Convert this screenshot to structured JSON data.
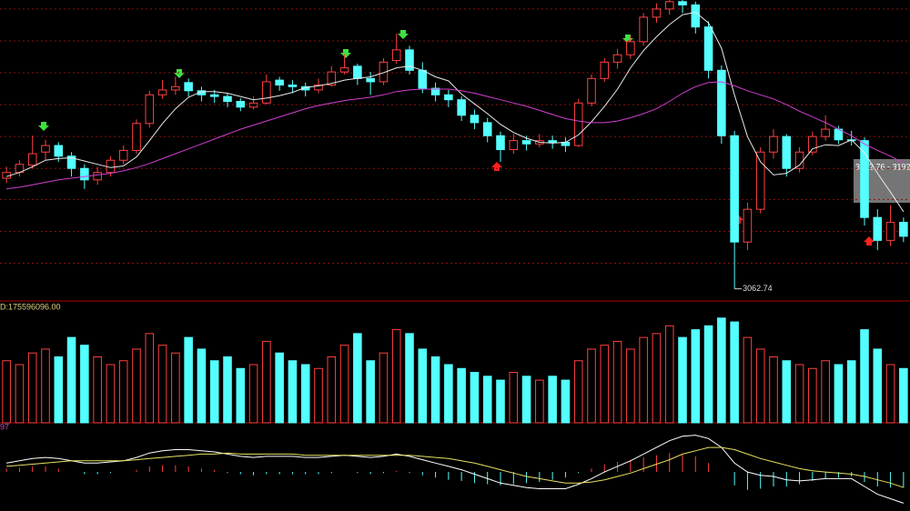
{
  "chart_data": {
    "type": "candlestick",
    "open": [
      3198,
      3205,
      3214,
      3230,
      3238,
      3225,
      3210,
      3196,
      3205,
      3220,
      3232,
      3265,
      3300,
      3306,
      3315,
      3305,
      3300,
      3298,
      3292,
      3285,
      3290,
      3318,
      3312,
      3310,
      3306,
      3312,
      3328,
      3335,
      3320,
      3316,
      3342,
      3355,
      3330,
      3308,
      3300,
      3294,
      3275,
      3266,
      3250,
      3233,
      3244,
      3240,
      3244,
      3242,
      3238,
      3290,
      3320,
      3340,
      3349,
      3365,
      3395,
      3405,
      3414,
      3410,
      3383,
      3330,
      3250,
      3120,
      3160,
      3230,
      3249,
      3210,
      3230,
      3249,
      3258,
      3245,
      3244,
      3150,
      3122,
      3144
    ],
    "high": [
      3212,
      3220,
      3250,
      3245,
      3242,
      3230,
      3215,
      3212,
      3225,
      3238,
      3270,
      3305,
      3318,
      3322,
      3320,
      3310,
      3306,
      3302,
      3296,
      3298,
      3325,
      3322,
      3318,
      3315,
      3320,
      3335,
      3350,
      3338,
      3328,
      3345,
      3375,
      3360,
      3340,
      3315,
      3306,
      3298,
      3282,
      3272,
      3255,
      3252,
      3250,
      3252,
      3250,
      3248,
      3295,
      3325,
      3345,
      3356,
      3372,
      3400,
      3412,
      3416,
      3416,
      3414,
      3390,
      3336,
      3256,
      3168,
      3236,
      3258,
      3252,
      3236,
      3255,
      3275,
      3262,
      3256,
      3248,
      3160,
      3165,
      3150
    ],
    "low": [
      3192,
      3200,
      3210,
      3220,
      3218,
      3200,
      3185,
      3190,
      3200,
      3215,
      3228,
      3260,
      3295,
      3300,
      3298,
      3292,
      3290,
      3285,
      3280,
      3282,
      3288,
      3305,
      3302,
      3298,
      3302,
      3310,
      3325,
      3312,
      3300,
      3312,
      3338,
      3325,
      3302,
      3292,
      3285,
      3268,
      3258,
      3242,
      3218,
      3228,
      3232,
      3236,
      3234,
      3230,
      3236,
      3286,
      3316,
      3332,
      3344,
      3360,
      3388,
      3398,
      3400,
      3375,
      3320,
      3240,
      3062.74,
      3110,
      3155,
      3222,
      3200,
      3205,
      3226,
      3244,
      3240,
      3238,
      3140,
      3110,
      3115,
      3120
    ],
    "close": [
      3205,
      3215,
      3228,
      3238,
      3225,
      3210,
      3196,
      3205,
      3220,
      3232,
      3265,
      3300,
      3306,
      3310,
      3305,
      3300,
      3298,
      3292,
      3285,
      3290,
      3316,
      3312,
      3310,
      3306,
      3312,
      3328,
      3333,
      3320,
      3316,
      3340,
      3355,
      3330,
      3308,
      3300,
      3294,
      3275,
      3266,
      3250,
      3233,
      3244,
      3240,
      3244,
      3242,
      3238,
      3290,
      3320,
      3340,
      3349,
      3365,
      3395,
      3405,
      3414,
      3410,
      3383,
      3330,
      3250,
      3120,
      3160,
      3230,
      3249,
      3210,
      3230,
      3249,
      3258,
      3245,
      3244,
      3150,
      3122,
      3144,
      3127
    ],
    "up_color": "#ff4040",
    "down_color": "#54ffff",
    "ylim": [
      3049,
      3416
    ],
    "yticks": [
      3405,
      3366,
      3327,
      3288,
      3249,
      3210,
      3172,
      3133,
      3094
    ],
    "grid": true,
    "series": [
      {
        "color": "#e8e8e8",
        "values": [
          3200,
          3205,
          3212,
          3220,
          3222,
          3223,
          3219,
          3215,
          3211,
          3213,
          3224,
          3244,
          3265,
          3283,
          3297,
          3304,
          3304,
          3302,
          3298,
          3294,
          3296,
          3299,
          3303,
          3309,
          3311,
          3314,
          3318,
          3320,
          3322,
          3327,
          3333,
          3335,
          3330,
          3322,
          3317,
          3301,
          3289,
          3277,
          3264,
          3254,
          3247,
          3242,
          3241,
          3242,
          3251,
          3267,
          3286,
          3307,
          3333,
          3354,
          3371,
          3386,
          3398,
          3401,
          3388,
          3357,
          3300,
          3249,
          3218,
          3202,
          3204,
          3214,
          3234,
          3239,
          3238,
          3245,
          3229,
          3204,
          3181,
          3157
        ]
      },
      {
        "color": "#d040d0",
        "values": [
          3185,
          3187,
          3190,
          3193,
          3196,
          3198,
          3200,
          3202,
          3204,
          3207,
          3211,
          3216,
          3222,
          3228,
          3234,
          3240,
          3246,
          3252,
          3258,
          3263,
          3268,
          3273,
          3278,
          3283,
          3287,
          3290,
          3293,
          3295,
          3297,
          3300,
          3304,
          3306,
          3307,
          3307,
          3307,
          3305,
          3302,
          3298,
          3294,
          3290,
          3286,
          3281,
          3276,
          3271,
          3268,
          3266,
          3266,
          3268,
          3272,
          3277,
          3283,
          3292,
          3302,
          3310,
          3315,
          3316,
          3311,
          3305,
          3300,
          3295,
          3288,
          3280,
          3273,
          3266,
          3258,
          3250,
          3240,
          3232,
          3225,
          3216
        ]
      }
    ],
    "low_annotation_index": 56,
    "annotation": "3212.76 - 3192",
    "volume": {
      "label": "D:175596096.00",
      "ylim": [
        0,
        300000000.0
      ],
      "values": [
        160000000.0,
        150000000.0,
        180000000.0,
        190000000.0,
        170000000.0,
        220000000.0,
        200000000.0,
        170000000.0,
        150000000.0,
        160000000.0,
        190000000.0,
        230000000.0,
        200000000.0,
        180000000.0,
        220000000.0,
        190000000.0,
        160000000.0,
        170000000.0,
        140000000.0,
        150000000.0,
        210000000.0,
        180000000.0,
        160000000.0,
        150000000.0,
        140000000.0,
        170000000.0,
        200000000.0,
        230000000.0,
        160000000.0,
        180000000.0,
        240000000.0,
        230000000.0,
        190000000.0,
        170000000.0,
        150000000.0,
        140000000.0,
        130000000.0,
        120000000.0,
        110000000.0,
        130000000.0,
        120000000.0,
        110000000.0,
        120000000.0,
        110000000.0,
        160000000.0,
        190000000.0,
        200000000.0,
        210000000.0,
        190000000.0,
        220000000.0,
        230000000.0,
        250000000.0,
        220000000.0,
        240000000.0,
        250000000.0,
        270000000.0,
        260000000.0,
        220000000.0,
        190000000.0,
        170000000.0,
        160000000.0,
        150000000.0,
        140000000.0,
        160000000.0,
        150000000.0,
        160000000.0,
        240000000.0,
        190000000.0,
        150000000.0,
        140000000.0
      ]
    },
    "macd": {
      "label": "97",
      "ylim": [
        -35,
        40
      ],
      "dif": [
        8,
        10,
        12,
        13,
        12,
        10,
        8,
        8,
        9,
        10,
        13,
        17,
        19,
        20,
        20,
        19,
        18,
        16,
        14,
        13,
        14,
        14,
        14,
        13,
        13,
        14,
        15,
        14,
        13,
        14,
        16,
        14,
        11,
        8,
        5,
        2,
        -2,
        -6,
        -10,
        -12,
        -14,
        -15,
        -15,
        -15,
        -11,
        -6,
        0,
        5,
        10,
        16,
        22,
        28,
        32,
        33,
        30,
        22,
        8,
        0,
        -3,
        -4,
        -7,
        -8,
        -7,
        -6,
        -6,
        -6,
        -13,
        -20,
        -24,
        -28
      ],
      "dea": [
        5,
        6,
        7,
        8,
        9,
        10,
        10,
        10,
        10,
        10,
        11,
        12,
        13,
        14,
        15,
        16,
        16,
        17,
        16,
        16,
        16,
        16,
        16,
        15,
        15,
        15,
        15,
        15,
        15,
        15,
        15,
        15,
        14,
        13,
        12,
        10,
        8,
        5,
        2,
        -1,
        -4,
        -6,
        -8,
        -10,
        -10,
        -9,
        -7,
        -4,
        -1,
        3,
        7,
        11,
        16,
        19,
        22,
        22,
        20,
        16,
        12,
        9,
        6,
        3,
        1,
        0,
        -1,
        -2,
        -4,
        -7,
        -10,
        -14
      ],
      "hist": [
        3,
        4,
        5,
        5,
        3,
        0,
        -2,
        -2,
        -1,
        0,
        2,
        5,
        6,
        6,
        5,
        3,
        2,
        -1,
        -2,
        -3,
        -2,
        -2,
        -2,
        -2,
        -2,
        -1,
        0,
        -1,
        -2,
        -1,
        1,
        -1,
        -3,
        -5,
        -7,
        -8,
        -10,
        -11,
        -12,
        -11,
        -10,
        -9,
        -7,
        -5,
        -1,
        3,
        7,
        9,
        11,
        13,
        15,
        17,
        16,
        14,
        8,
        0,
        -12,
        -16,
        -15,
        -13,
        -13,
        -11,
        -8,
        -6,
        -5,
        -4,
        -9,
        -13,
        -14,
        -14
      ]
    }
  }
}
